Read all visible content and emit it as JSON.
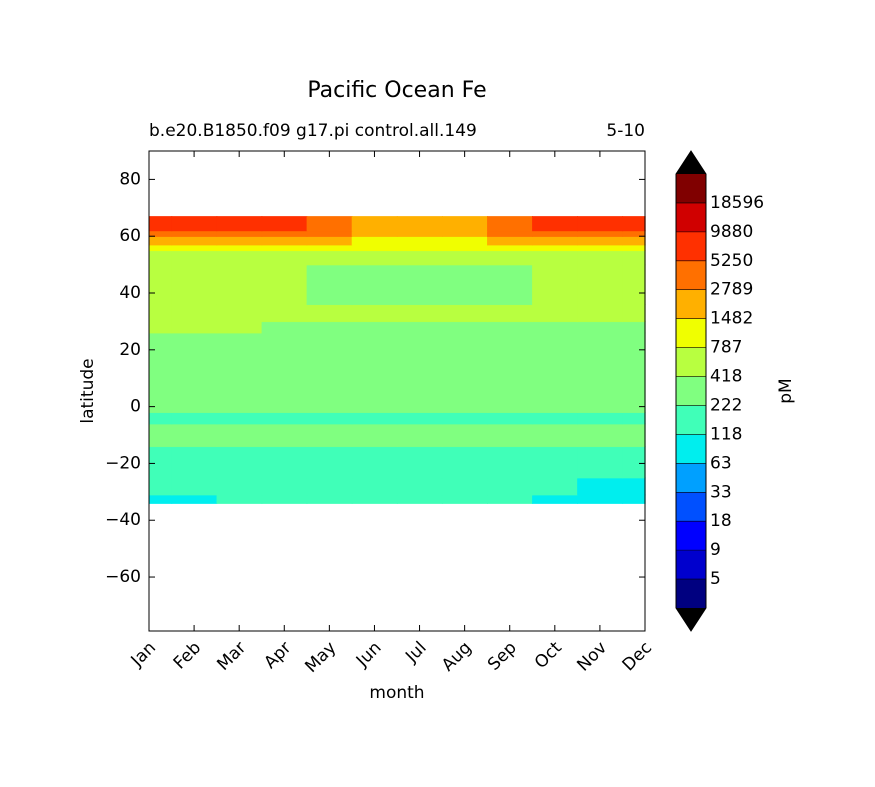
{
  "chart_data": {
    "type": "contour",
    "title": "Pacific Ocean Fe",
    "subtitle_left": "b.e20.B1850.f09 g17.pi control.all.149",
    "subtitle_right": "5-10",
    "xlabel": "month",
    "ylabel": "latitude",
    "colorbar_label": "pM",
    "categories": [
      "Jan",
      "Feb",
      "Mar",
      "Apr",
      "May",
      "Jun",
      "Jul",
      "Aug",
      "Sep",
      "Oct",
      "Nov",
      "Dec"
    ],
    "y_edges": [
      -34,
      -31,
      -25,
      -14,
      -6,
      -2,
      26,
      30,
      36,
      50,
      55,
      57,
      60,
      62,
      67
    ],
    "z": [
      [
        80,
        80,
        150,
        150,
        150,
        150,
        150,
        150,
        150,
        80,
        80,
        80
      ],
      [
        150,
        150,
        150,
        150,
        150,
        150,
        150,
        150,
        150,
        150,
        80,
        80
      ],
      [
        150,
        150,
        150,
        150,
        150,
        150,
        150,
        150,
        150,
        150,
        150,
        150
      ],
      [
        300,
        300,
        300,
        300,
        300,
        300,
        300,
        300,
        300,
        300,
        300,
        300
      ],
      [
        150,
        150,
        150,
        150,
        150,
        150,
        150,
        150,
        150,
        150,
        150,
        150
      ],
      [
        300,
        300,
        300,
        300,
        300,
        300,
        300,
        300,
        300,
        300,
        300,
        300
      ],
      [
        500,
        500,
        500,
        300,
        300,
        300,
        300,
        300,
        300,
        300,
        300,
        300
      ],
      [
        500,
        500,
        500,
        500,
        500,
        500,
        500,
        500,
        500,
        500,
        500,
        500
      ],
      [
        500,
        500,
        500,
        500,
        300,
        300,
        300,
        300,
        300,
        500,
        500,
        500
      ],
      [
        500,
        500,
        500,
        500,
        500,
        500,
        500,
        500,
        500,
        500,
        500,
        500
      ],
      [
        1000,
        1000,
        1000,
        1000,
        1000,
        1000,
        1000,
        1000,
        1000,
        1000,
        1000,
        1000
      ],
      [
        2000,
        2000,
        2000,
        2000,
        2000,
        1000,
        1000,
        1000,
        2000,
        2000,
        2000,
        2000
      ],
      [
        4000,
        4000,
        4000,
        4000,
        4000,
        2000,
        2000,
        2000,
        4000,
        4000,
        4000,
        4000
      ],
      [
        7000,
        7000,
        7000,
        7000,
        4000,
        2000,
        2000,
        2000,
        4000,
        7000,
        7000,
        7000
      ]
    ],
    "levels": [
      5,
      9,
      18,
      33,
      63,
      118,
      222,
      418,
      787,
      1482,
      2789,
      5250,
      9880,
      18596
    ],
    "colors": [
      "#000080",
      "#0000cd",
      "#0000ff",
      "#0050ff",
      "#00a0ff",
      "#00eeee",
      "#40ffb8",
      "#80ff80",
      "#b8ff40",
      "#f0ff00",
      "#ffb000",
      "#ff7000",
      "#ff3000",
      "#d00000",
      "#800000"
    ],
    "extend_color": "#000000",
    "ylim": [
      -79,
      90
    ],
    "yticks": [
      {
        "value": -60,
        "label": "−60"
      },
      {
        "value": -40,
        "label": "−40"
      },
      {
        "value": -20,
        "label": "−20"
      },
      0,
      20,
      40,
      60,
      80
    ]
  }
}
